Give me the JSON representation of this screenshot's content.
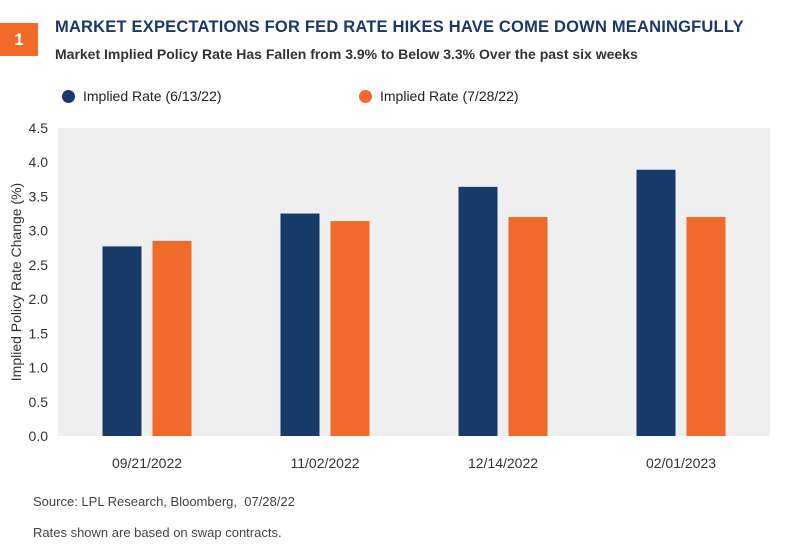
{
  "header": {
    "badge": "1",
    "title": "MARKET EXPECTATIONS FOR FED RATE HIKES HAVE COME DOWN MEANINGFULLY",
    "subtitle": "Market Implied Policy Rate Has Fallen from 3.9% to Below 3.3% Over the past six weeks"
  },
  "chart_data": {
    "type": "bar",
    "categories": [
      "09/21/2022",
      "11/02/2022",
      "12/14/2022",
      "02/01/2023"
    ],
    "series": [
      {
        "name": "Implied Rate (6/13/22)",
        "color": "#173a68",
        "values": [
          2.77,
          3.25,
          3.64,
          3.89
        ]
      },
      {
        "name": "Implied Rate (7/28/22)",
        "color": "#f26a2a",
        "values": [
          2.85,
          3.14,
          3.2,
          3.2
        ]
      }
    ],
    "ylabel": "Implied Policy Rate Change (%)",
    "ylim": [
      0,
      4.5
    ],
    "yticks": [
      "0.0",
      "0.5",
      "1.0",
      "1.5",
      "2.0",
      "2.5",
      "3.0",
      "3.5",
      "4.0",
      "4.5"
    ],
    "legend_position": "top",
    "plot_background": "#efefef"
  },
  "footer": {
    "source": "Source: LPL Research, Bloomberg,  07/28/22",
    "note": "Rates shown are based on swap contracts."
  }
}
